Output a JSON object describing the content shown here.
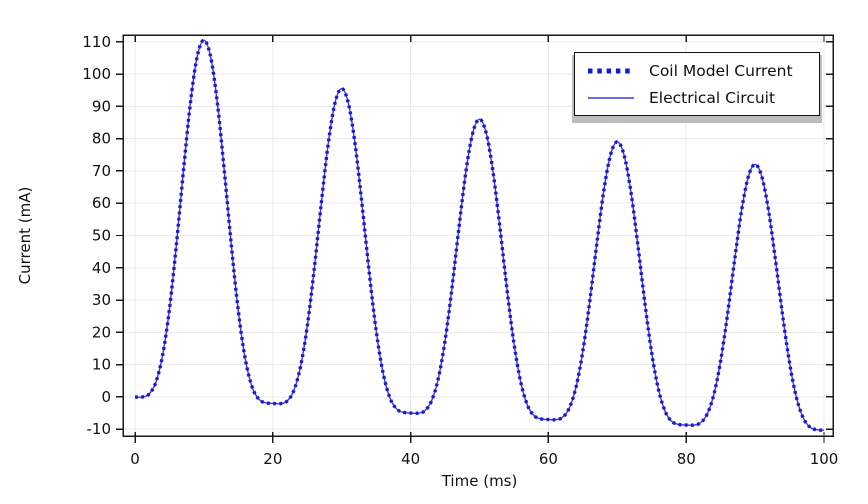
{
  "figure": {
    "y_axis_label": "Current (mA)",
    "x_axis_label": "Time (ms)",
    "legend": [
      {
        "label": "Coil Model Current",
        "style": "dotted"
      },
      {
        "label": "Electrical Circuit",
        "style": "solid"
      }
    ],
    "colors": {
      "background": "#ffffff",
      "frame": "#1a1a1a",
      "grid": "#ebebeb",
      "solid_line": "#3a3ad0",
      "dotted_line": "#1a1acd",
      "text": "#111111",
      "legend_shadow": "#bdbdbd"
    }
  },
  "chart_data": {
    "type": "line",
    "title": "",
    "xlabel": "Time (ms)",
    "ylabel": "Current (mA)",
    "xlim": [
      -1.75,
      101.3
    ],
    "ylim": [
      -12.1,
      112.1
    ],
    "x_ticks": [
      0,
      20,
      40,
      60,
      80,
      100
    ],
    "y_ticks": [
      -10,
      0,
      10,
      20,
      30,
      40,
      50,
      60,
      70,
      80,
      90,
      100,
      110
    ],
    "grid": true,
    "legend_position": "top-right",
    "peaks": {
      "t": [
        10,
        30,
        50,
        70,
        90
      ],
      "value": [
        110.5,
        95.5,
        86,
        79,
        72
      ]
    },
    "troughs": {
      "t": [
        0,
        20,
        40,
        60,
        80,
        100
      ],
      "value": [
        0,
        -2,
        -5,
        -7,
        -8.7,
        -10.3
      ]
    },
    "x": [
      0,
      1,
      2,
      3,
      4,
      5,
      6,
      7,
      8,
      9,
      10,
      11,
      12,
      13,
      14,
      15,
      16,
      17,
      18,
      19,
      20,
      21,
      22,
      23,
      24,
      25,
      26,
      27,
      28,
      29,
      30,
      31,
      32,
      33,
      34,
      35,
      36,
      37,
      38,
      39,
      40,
      41,
      42,
      43,
      44,
      45,
      46,
      47,
      48,
      49,
      50,
      51,
      52,
      53,
      54,
      55,
      56,
      57,
      58,
      59,
      60,
      61,
      62,
      63,
      64,
      65,
      66,
      67,
      68,
      69,
      70,
      71,
      72,
      73,
      74,
      75,
      76,
      77,
      78,
      79,
      80,
      81,
      82,
      83,
      84,
      85,
      86,
      87,
      88,
      89,
      90,
      91,
      92,
      93,
      94,
      95,
      96,
      97,
      98,
      99,
      100
    ],
    "series": [
      {
        "name": "Coil Model Current",
        "style": "dotted",
        "color": "#1a1acd",
        "values": [
          0,
          -0.03,
          0.82,
          4.44,
          12.91,
          27.38,
          47.17,
          69.57,
          90.44,
          105.23,
          110.5,
          105.03,
          90.04,
          68.97,
          46.37,
          26.38,
          11.71,
          3.04,
          -0.78,
          -1.83,
          -2,
          -2.09,
          -1.4,
          1.76,
          9.22,
          22.0,
          39.51,
          59.34,
          77.81,
          90.88,
          95.5,
          90.58,
          77.21,
          58.44,
          38.31,
          20.5,
          7.42,
          -0.34,
          -3.8,
          -4.79,
          -5,
          -5.04,
          -4.36,
          -1.39,
          5.58,
          17.5,
          33.81,
          52.28,
          69.48,
          81.67,
          86,
          81.47,
          69.08,
          51.68,
          33.01,
          16.5,
          4.38,
          -2.79,
          -5.96,
          -6.84,
          -7,
          -7.03,
          -6.38,
          -3.56,
          3.03,
          14.29,
          29.7,
          47.14,
          63.39,
          74.9,
          79,
          74.73,
          63.05,
          46.63,
          29.02,
          13.44,
          2.01,
          -4.76,
          -7.74,
          -8.56,
          -8.7,
          -8.73,
          -8.12,
          -5.48,
          0.71,
          11.28,
          25.73,
          42.1,
          57.35,
          68.15,
          72,
          67.99,
          57.03,
          41.62,
          25.09,
          10.48,
          -0.25,
          -6.6,
          -9.4,
          -10.17,
          -10.3
        ]
      },
      {
        "name": "Electrical Circuit",
        "style": "solid",
        "color": "#3a3ad0",
        "values": [
          0,
          -0.03,
          0.82,
          4.44,
          12.91,
          27.38,
          47.17,
          69.57,
          90.44,
          105.23,
          110.5,
          105.03,
          90.04,
          68.97,
          46.37,
          26.38,
          11.71,
          3.04,
          -0.78,
          -1.83,
          -2,
          -2.09,
          -1.4,
          1.76,
          9.22,
          22.0,
          39.51,
          59.34,
          77.81,
          90.88,
          95.5,
          90.58,
          77.21,
          58.44,
          38.31,
          20.5,
          7.42,
          -0.34,
          -3.8,
          -4.79,
          -5,
          -5.04,
          -4.36,
          -1.39,
          5.58,
          17.5,
          33.81,
          52.28,
          69.48,
          81.67,
          86,
          81.47,
          69.08,
          51.68,
          33.01,
          16.5,
          4.38,
          -2.79,
          -5.96,
          -6.84,
          -7,
          -7.03,
          -6.38,
          -3.56,
          3.03,
          14.29,
          29.7,
          47.14,
          63.39,
          74.9,
          79,
          74.73,
          63.05,
          46.63,
          29.02,
          13.44,
          2.01,
          -4.76,
          -7.74,
          -8.56,
          -8.7,
          -8.73,
          -8.12,
          -5.48,
          0.71,
          11.28,
          25.73,
          42.1,
          57.35,
          68.15,
          72,
          67.99,
          57.03,
          41.62,
          25.09,
          10.48,
          -0.25,
          -6.6,
          -9.4,
          -10.17,
          -10.3
        ]
      }
    ]
  }
}
